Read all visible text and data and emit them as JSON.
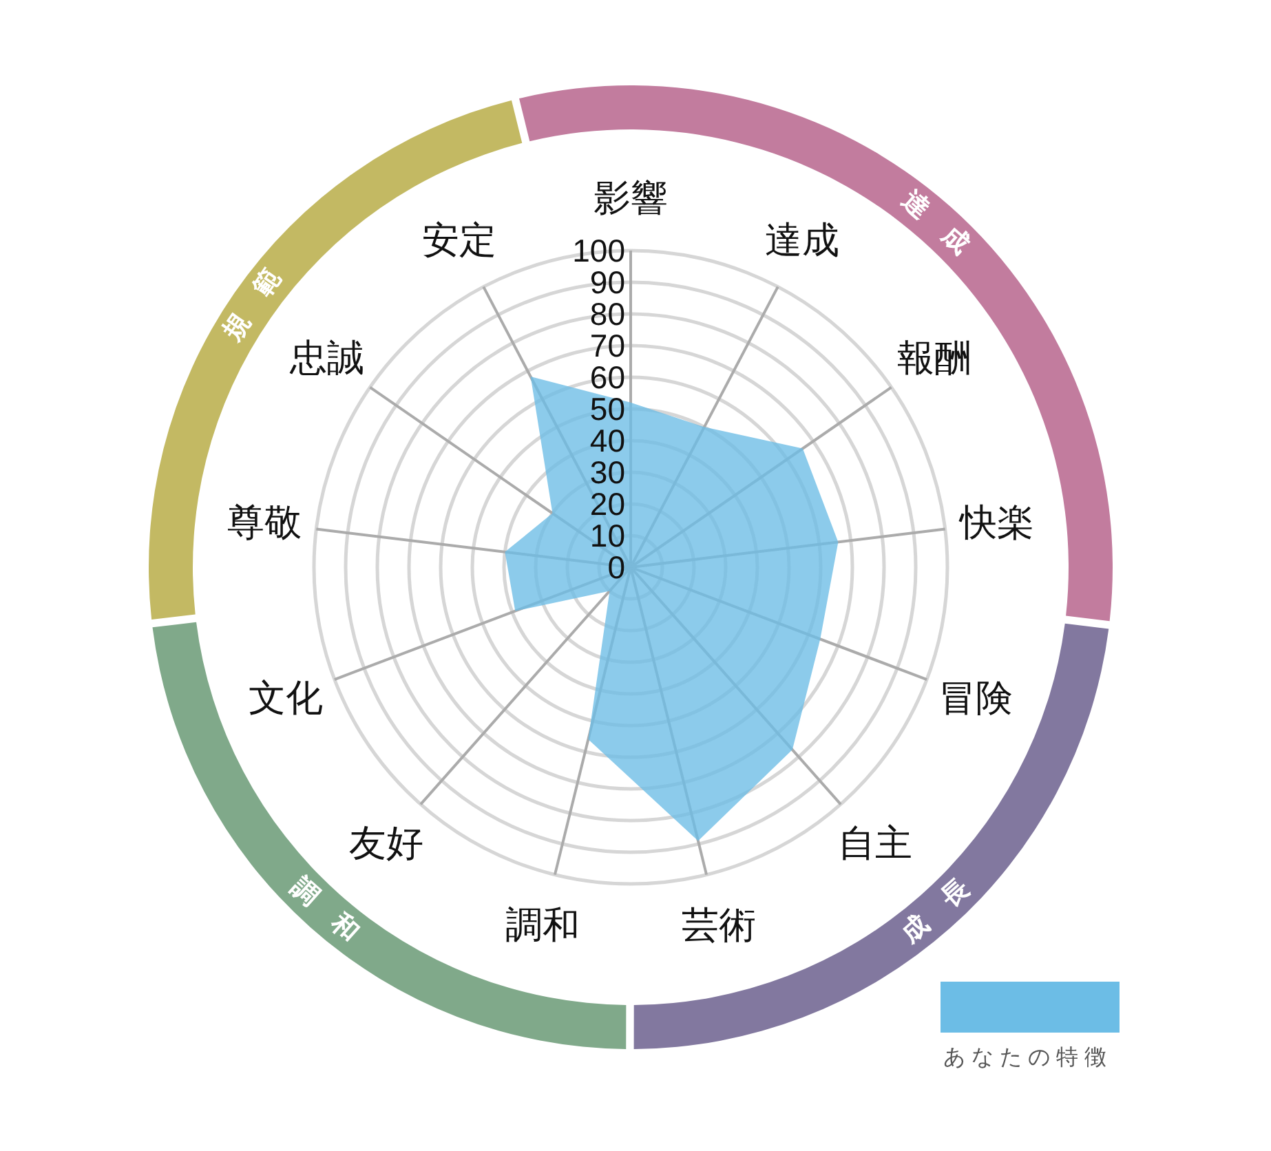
{
  "chart_data": [
    {
      "type": "radar",
      "categories": [
        "影響",
        "達成",
        "報酬",
        "快楽",
        "冒険",
        "自主",
        "芸術",
        "調和",
        "友好",
        "文化",
        "尊敬",
        "忠誠",
        "安定"
      ],
      "series": [
        {
          "name": "あなたの特徴",
          "color": "#6cbde6",
          "values": [
            52,
            50,
            66,
            66,
            64,
            77,
            89,
            56,
            10,
            39,
            40,
            30,
            68
          ]
        }
      ],
      "ylim": [
        0,
        100
      ],
      "yticks": [
        0,
        10,
        20,
        30,
        40,
        50,
        60,
        70,
        80,
        90,
        100
      ],
      "grid": true,
      "legend": "bottom right"
    },
    {
      "type": "donut",
      "categories": [
        "達成",
        "成長",
        "調和",
        "規範"
      ],
      "values": [
        30.8,
        23.1,
        23.1,
        23.0
      ],
      "colors": [
        "#c27c9e",
        "#82789f",
        "#80a98a",
        "#c3b963"
      ]
    }
  ]
}
